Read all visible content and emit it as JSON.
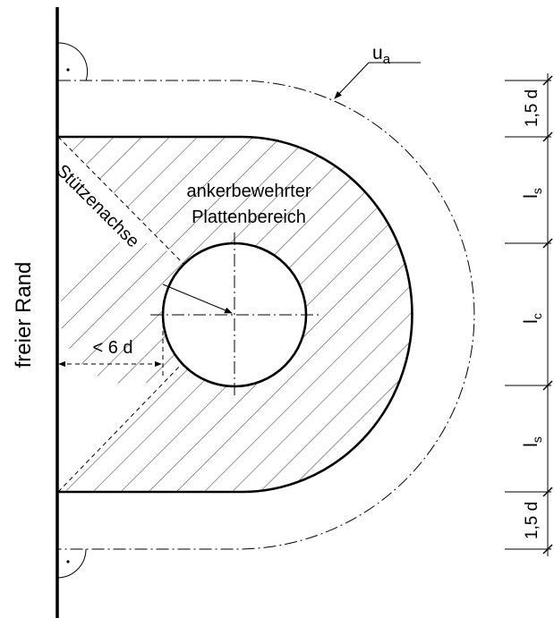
{
  "labels": {
    "free_edge": "freier Rand",
    "column_axis": "Stützenachse",
    "region_line1": "ankerbewehrter",
    "region_line2": "Plattenbereich",
    "distance_limit": "< 6 d",
    "perimeter_u": "u",
    "perimeter_sub": "a"
  },
  "dimensions": [
    {
      "main": "1,5 d",
      "sub": ""
    },
    {
      "main": "l",
      "sub": "s"
    },
    {
      "main": "l",
      "sub": "c"
    },
    {
      "main": "l",
      "sub": "s"
    },
    {
      "main": "1,5 d",
      "sub": ""
    }
  ],
  "colors": {
    "line": "#000000",
    "hatch": "#444444",
    "background": "#ffffff"
  }
}
